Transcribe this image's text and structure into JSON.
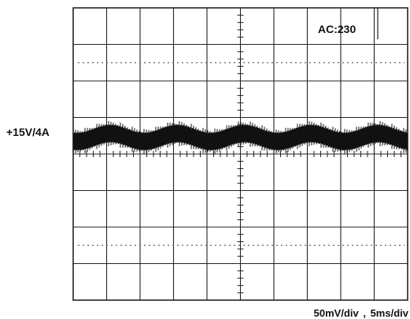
{
  "chart_data": {
    "type": "line",
    "title": "",
    "series": [
      {
        "name": "+15V/4A",
        "description_values": {
          "period_ms": 10,
          "ripple_mv_pp": 50
        }
      }
    ],
    "annotations": {
      "input": "AC:230",
      "scale": "50mV/div , 5ms/div"
    },
    "grid": {
      "horizontal_divisions": 8,
      "vertical_divisions": 10
    },
    "colors": {
      "trace": "#111111",
      "grid": "#222222",
      "background": "#ffffff"
    }
  }
}
